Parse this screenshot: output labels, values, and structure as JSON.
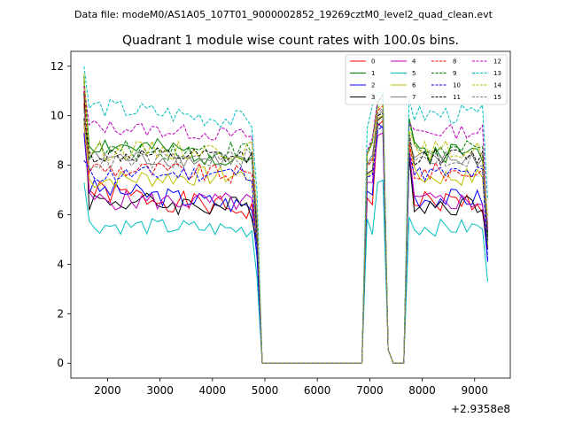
{
  "suptitle": "Data file: modeM0/AS1A05_107T01_9000002852_19269cztM0_level2_quad_clean.evt",
  "chart_data": {
    "type": "line",
    "title": "Quadrant 1 module wise count rates with 100.0s bins.",
    "xlabel": "",
    "ylabel": "",
    "x_offset_label": "+2.9358e8",
    "xlim": [
      1300,
      9680
    ],
    "ylim": [
      -0.6,
      12.6
    ],
    "xticks": [
      2000,
      3000,
      4000,
      5000,
      6000,
      7000,
      8000,
      9000
    ],
    "yticks": [
      0,
      2,
      4,
      6,
      8,
      10,
      12
    ],
    "grid": false,
    "legend": {
      "location": "top-right",
      "columns": 4
    },
    "segments_x": [
      [
        1550,
        1650,
        1750,
        1850,
        1950,
        2050,
        2150,
        2250,
        2350,
        2450,
        2550,
        2650,
        2750,
        2850,
        2950,
        3050,
        3150,
        3250,
        3350,
        3450,
        3550,
        3650,
        3750,
        3850,
        3950,
        4050,
        4150,
        4250,
        4350,
        4450,
        4550,
        4650,
        4750,
        4850,
        4950,
        5050
      ],
      [
        6850,
        6950,
        7050,
        7150,
        7250,
        7350,
        7450,
        7550,
        7650,
        7750,
        7850,
        7950,
        8050,
        8150,
        8250,
        8350,
        8450,
        8550,
        8650,
        8750,
        8850,
        8950,
        9050,
        9150,
        9250
      ]
    ],
    "series": [
      {
        "name": "0",
        "color": "#ff0000",
        "dash": "solid",
        "seed": 1,
        "base": 7.0,
        "start": 10.5,
        "end": 6.2,
        "spread": 0.45,
        "g1": 6.4,
        "g2": 6.5,
        "p1": 9.6,
        "p2": 9.8,
        "rise": 8.8,
        "tail": 4.7
      },
      {
        "name": "1",
        "color": "#008000",
        "dash": "solid",
        "seed": 2,
        "base": 8.9,
        "start": 11.5,
        "end": 8.3,
        "spread": 0.45,
        "g1": 8.9,
        "g2": 9.0,
        "p1": 10.5,
        "p2": 10.9,
        "rise": 9.9,
        "tail": 5.2
      },
      {
        "name": "2",
        "color": "#0000ff",
        "dash": "solid",
        "seed": 3,
        "base": 7.1,
        "start": 9.3,
        "end": 6.4,
        "spread": 0.4,
        "g1": 6.8,
        "g2": 7.0,
        "p1": 9.7,
        "p2": 9.5,
        "rise": 8.2,
        "tail": 4.1
      },
      {
        "name": "3",
        "color": "#000000",
        "dash": "solid",
        "seed": 4,
        "base": 6.6,
        "start": 11.0,
        "end": 6.3,
        "spread": 0.45,
        "g1": 7.8,
        "g2": 7.9,
        "p1": 9.8,
        "p2": 10.0,
        "rise": 8.4,
        "tail": 4.6
      },
      {
        "name": "4",
        "color": "#bf00bf",
        "dash": "solid",
        "seed": 5,
        "base": 6.6,
        "start": 9.7,
        "end": 6.5,
        "spread": 0.4,
        "g1": 7.3,
        "g2": 7.4,
        "p1": 9.2,
        "p2": 9.3,
        "rise": 8.6,
        "tail": 4.9
      },
      {
        "name": "5",
        "color": "#00bfbf",
        "dash": "solid",
        "seed": 6,
        "base": 5.6,
        "start": 7.3,
        "end": 5.4,
        "spread": 0.35,
        "g1": 5.2,
        "g2": 5.6,
        "p1": 7.3,
        "p2": 7.4,
        "rise": 5.9,
        "tail": 3.3
      },
      {
        "name": "6",
        "color": "#bfbf00",
        "dash": "solid",
        "seed": 7,
        "base": 7.4,
        "start": 9.8,
        "end": 7.6,
        "spread": 0.4,
        "g1": 7.7,
        "g2": 7.8,
        "p1": 9.9,
        "p2": 10.0,
        "rise": 9.1,
        "tail": 4.8
      },
      {
        "name": "7",
        "color": "#808080",
        "dash": "solid",
        "seed": 8,
        "base": 8.3,
        "start": 10.3,
        "end": 8.2,
        "spread": 0.35,
        "g1": 8.4,
        "g2": 8.5,
        "p1": 10.0,
        "p2": 10.2,
        "rise": 9.0,
        "tail": 4.9
      },
      {
        "name": "8",
        "color": "#ff0000",
        "dash": "dashed",
        "seed": 9,
        "base": 7.9,
        "start": 11.2,
        "end": 7.6,
        "spread": 0.4,
        "g1": 8.2,
        "g2": 8.3,
        "p1": 10.2,
        "p2": 10.4,
        "rise": 9.0,
        "tail": 5.6
      },
      {
        "name": "9",
        "color": "#008000",
        "dash": "dashed",
        "seed": 10,
        "base": 8.6,
        "start": 11.6,
        "end": 8.6,
        "spread": 0.4,
        "g1": 9.0,
        "g2": 9.1,
        "p1": 10.6,
        "p2": 10.7,
        "rise": 9.8,
        "tail": 5.3
      },
      {
        "name": "10",
        "color": "#0000ff",
        "dash": "dashed",
        "seed": 11,
        "base": 7.6,
        "start": 8.2,
        "end": 7.7,
        "spread": 0.35,
        "g1": 7.6,
        "g2": 7.8,
        "p1": 9.4,
        "p2": 9.6,
        "rise": 8.5,
        "tail": 4.2
      },
      {
        "name": "11",
        "color": "#000000",
        "dash": "dashed",
        "seed": 12,
        "base": 8.4,
        "start": 9.9,
        "end": 8.3,
        "spread": 0.35,
        "g1": 8.3,
        "g2": 8.5,
        "p1": 10.0,
        "p2": 10.1,
        "rise": 9.3,
        "tail": 5.0
      },
      {
        "name": "12",
        "color": "#bf00bf",
        "dash": "dashed",
        "seed": 13,
        "base": 9.6,
        "start": 11.2,
        "end": 9.2,
        "spread": 0.3,
        "g1": 9.1,
        "g2": 9.2,
        "p1": 10.6,
        "p2": 10.8,
        "rise": 9.7,
        "tail": 5.4
      },
      {
        "name": "13",
        "color": "#00bfbf",
        "dash": "dashed",
        "seed": 14,
        "base": 10.4,
        "start": 12.0,
        "end": 9.8,
        "spread": 0.4,
        "g1": 10.4,
        "g2": 10.6,
        "p1": 10.9,
        "p2": 11.0,
        "rise": 10.7,
        "tail": 6.6
      },
      {
        "name": "14",
        "color": "#bfbf00",
        "dash": "dashed",
        "seed": 15,
        "base": 8.6,
        "start": 11.7,
        "end": 8.6,
        "spread": 0.4,
        "g1": 8.9,
        "g2": 9.0,
        "p1": 10.3,
        "p2": 10.5,
        "rise": 9.4,
        "tail": 5.9
      },
      {
        "name": "15",
        "color": "#808080",
        "dash": "dashed",
        "seed": 16,
        "base": 8.1,
        "start": 10.2,
        "end": 8.3,
        "spread": 0.35,
        "g1": 8.3,
        "g2": 8.4,
        "p1": 10.1,
        "p2": 10.3,
        "rise": 9.1,
        "tail": 5.5
      }
    ]
  }
}
